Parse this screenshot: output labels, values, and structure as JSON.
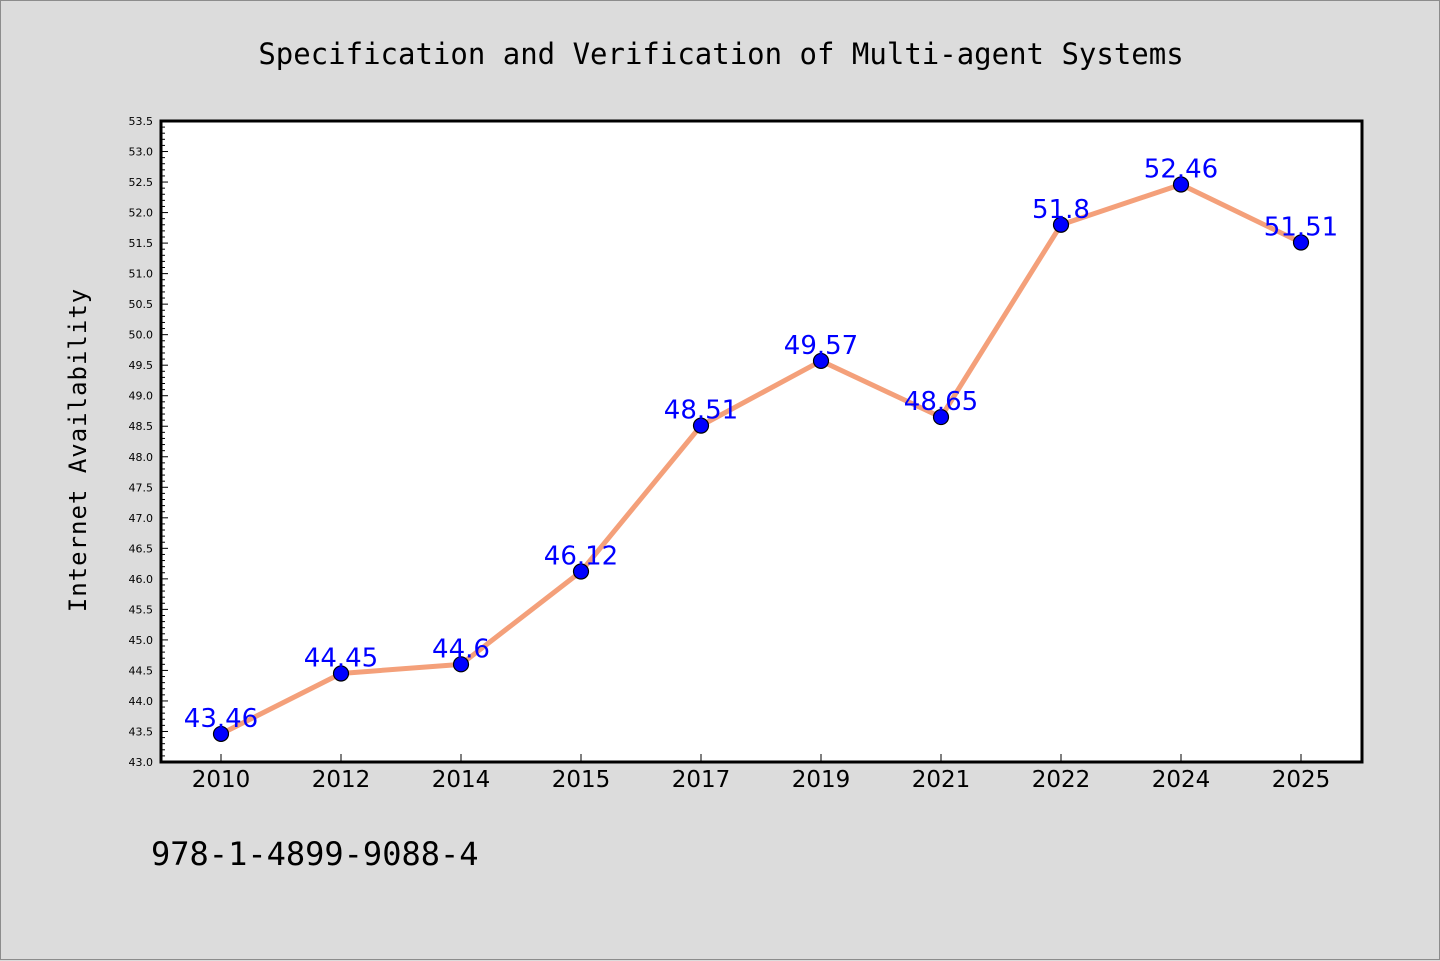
{
  "chart_data": {
    "type": "line",
    "title": "Specification and Verification of Multi-agent Systems",
    "xlabel": "",
    "ylabel": "Internet Availability",
    "categories": [
      "2010",
      "2012",
      "2014",
      "2015",
      "2017",
      "2019",
      "2021",
      "2022",
      "2024",
      "2025"
    ],
    "series": [
      {
        "values": [
          43.46,
          44.45,
          44.6,
          46.12,
          48.51,
          49.57,
          48.65,
          51.8,
          52.46,
          51.51
        ],
        "data_labels": [
          "43.46",
          "44.45",
          "44.6",
          "46.12",
          "48.51",
          "49.57",
          "48.65",
          "51.8",
          "52.46",
          "51.51"
        ],
        "line_color": "#f4a07a",
        "marker_color": "#0000ff"
      }
    ],
    "ylim": [
      43.0,
      53.5
    ],
    "yticks": [
      "43.0",
      "43.5",
      "44.0",
      "44.5",
      "45.0",
      "45.5",
      "46.0",
      "46.5",
      "47.0",
      "47.5",
      "48.0",
      "48.5",
      "49.0",
      "49.5",
      "50.0",
      "50.5",
      "51.0",
      "51.5",
      "52.0",
      "52.5",
      "53.0",
      "53.5"
    ],
    "grid": false,
    "legend": "none",
    "annotation": "978-1-4899-9088-4",
    "background_color": "#dcdcdc",
    "plot_background_color": "#ffffff"
  }
}
